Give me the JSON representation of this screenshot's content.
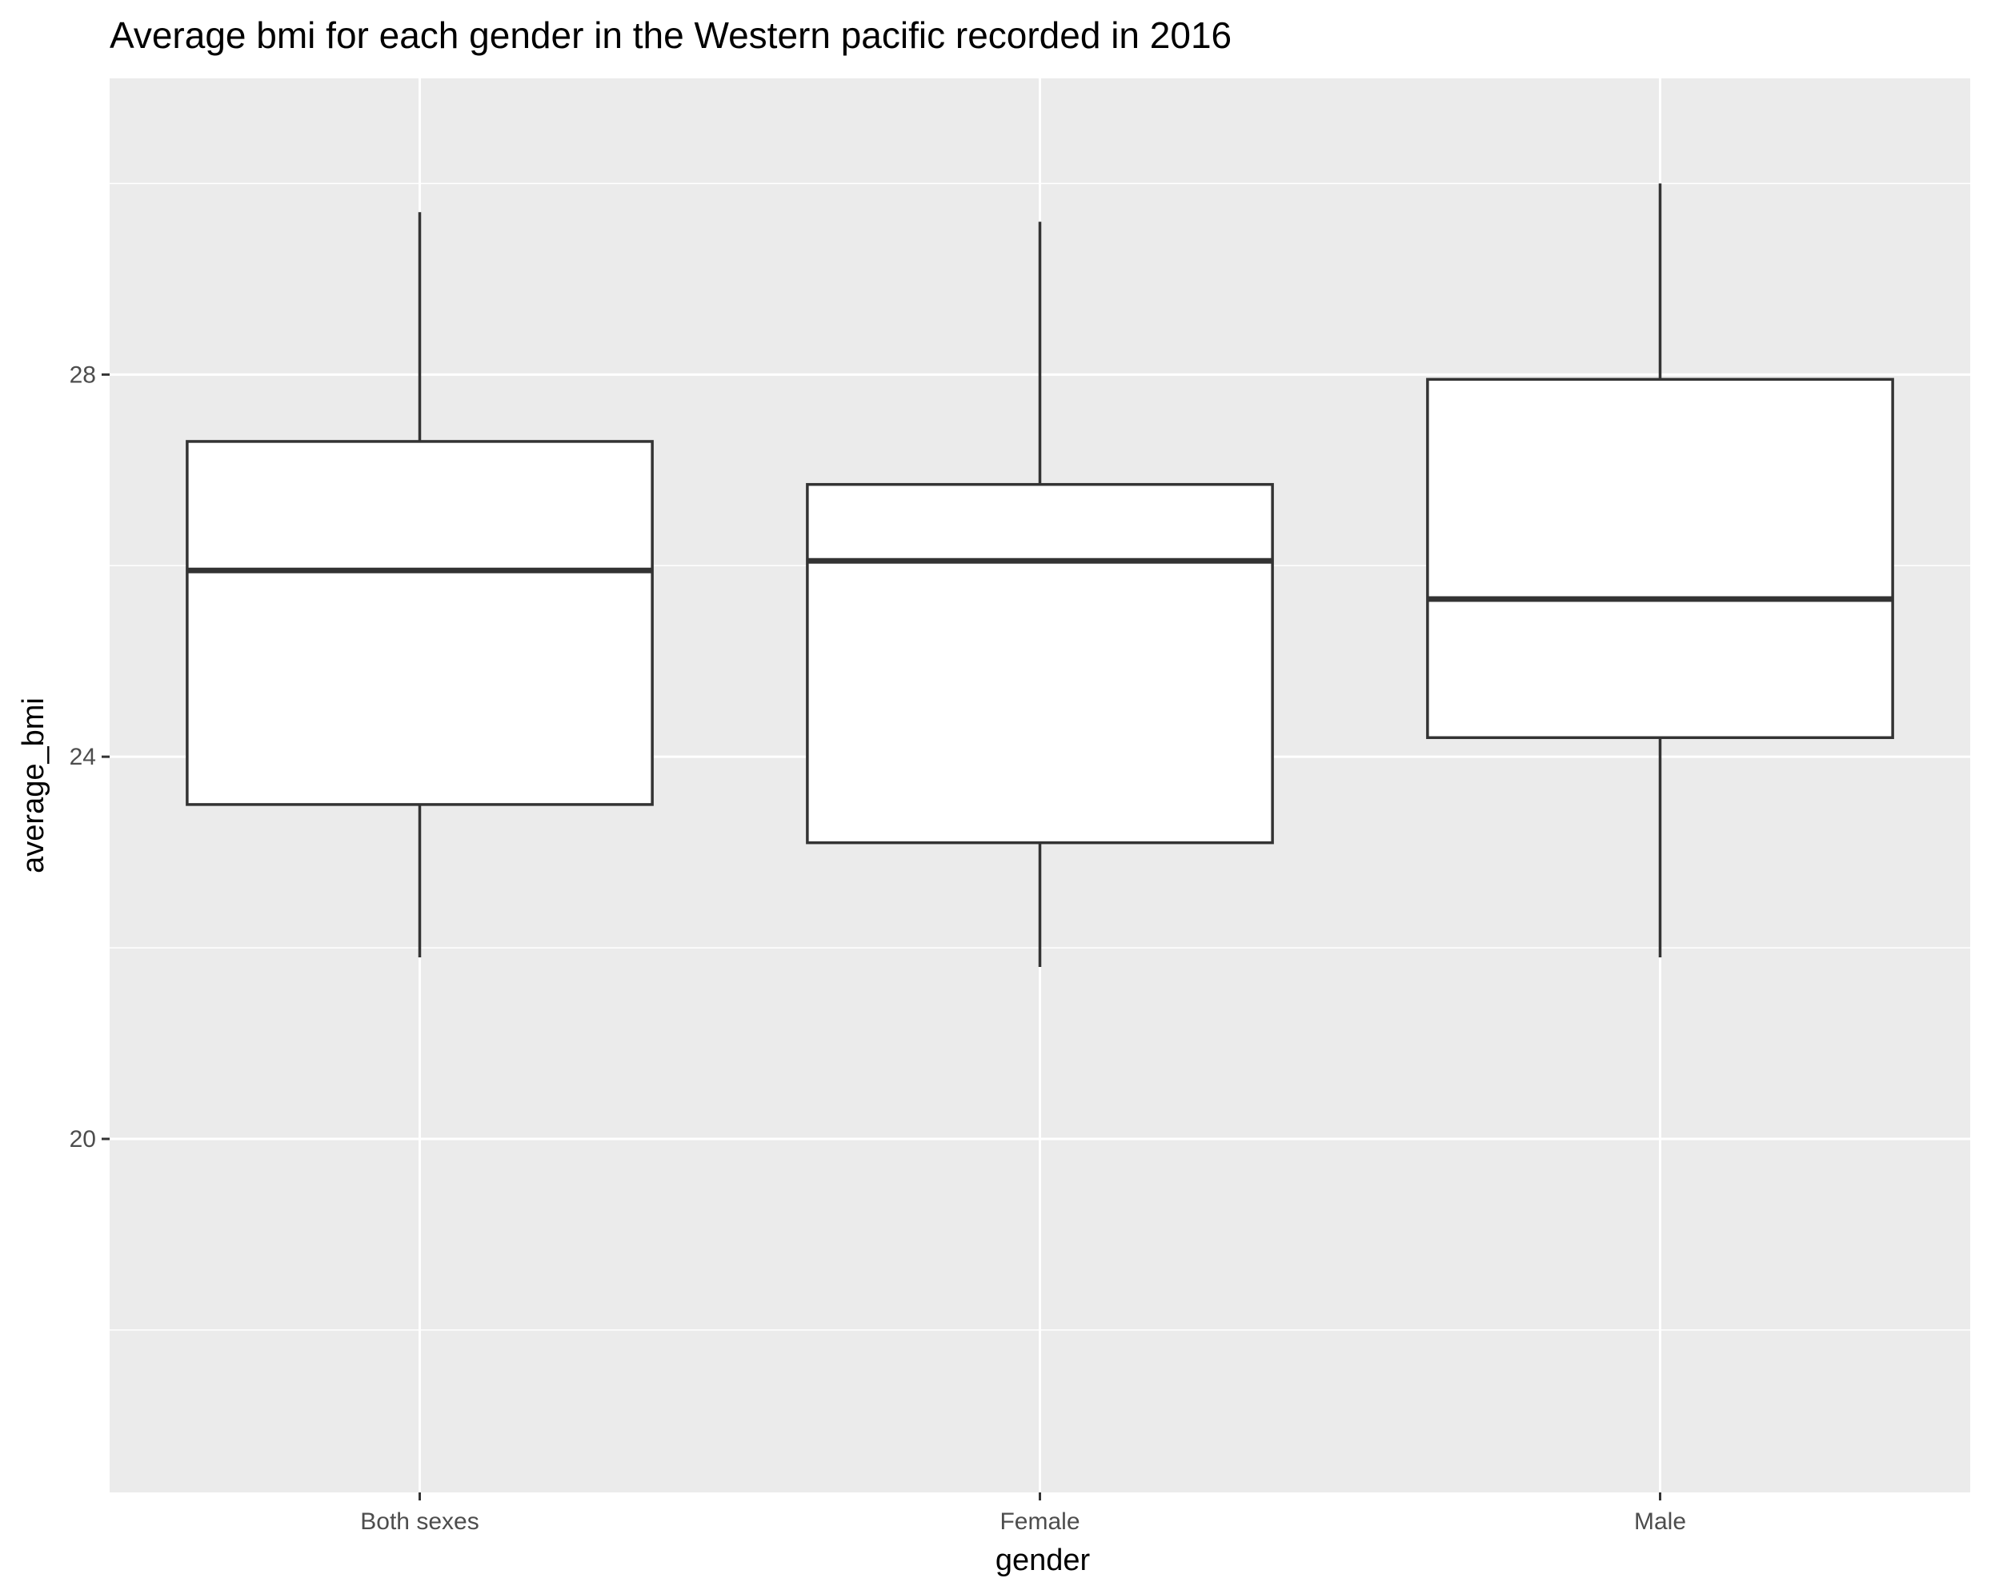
{
  "chart_data": {
    "type": "boxplot",
    "title": "Average bmi for each gender in the Western pacific recorded in 2016",
    "xlabel": "gender",
    "ylabel": "average_bmi",
    "categories": [
      "Both sexes",
      "Female",
      "Male"
    ],
    "boxes": [
      {
        "category": "Both sexes",
        "whisker_low": 21.9,
        "q1": 23.5,
        "median": 25.95,
        "q3": 27.3,
        "whisker_high": 29.7
      },
      {
        "category": "Female",
        "whisker_low": 21.8,
        "q1": 23.1,
        "median": 26.05,
        "q3": 26.85,
        "whisker_high": 29.6
      },
      {
        "category": "Male",
        "whisker_low": 21.9,
        "q1": 24.2,
        "median": 25.65,
        "q3": 27.95,
        "whisker_high": 30.0
      }
    ],
    "yticks": [
      20,
      24,
      28
    ],
    "ytick_labels": [
      "20",
      "24",
      "28"
    ],
    "ylim": [
      16.3,
      31.1
    ],
    "grid": true,
    "legend": "none",
    "colors": {
      "panel_background": "#ebebeb",
      "grid_line": "#ffffff",
      "box_fill": "#ffffff",
      "box_stroke": "#333333",
      "tick_mark": "#333333"
    }
  }
}
